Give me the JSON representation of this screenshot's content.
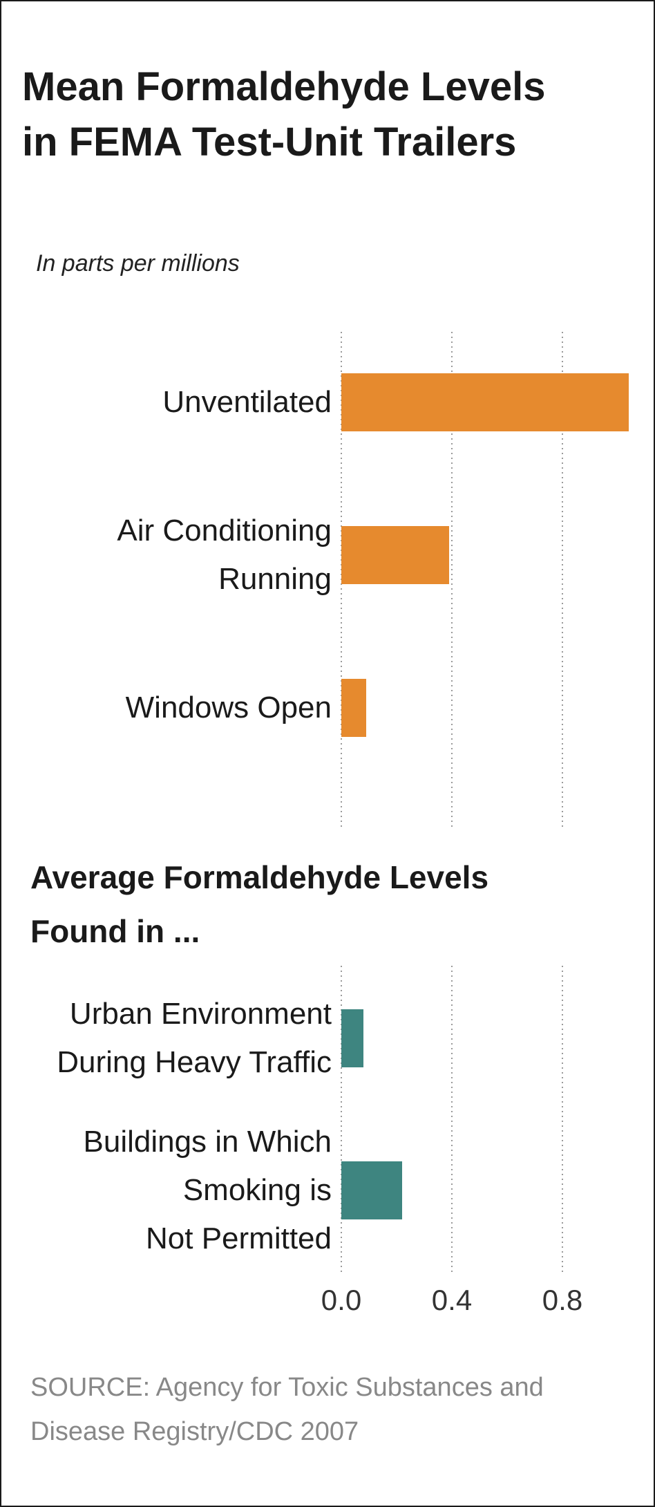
{
  "chart_data": [
    {
      "type": "bar",
      "orientation": "horizontal",
      "title": "Mean Formaldehyde Levels in FEMA Test-Unit Trailers",
      "title_lines": [
        "Mean Formaldehyde Levels",
        "in FEMA Test-Unit Trailers"
      ],
      "units": "In parts per millions",
      "categories": [
        "Unventilated",
        "Air Conditioning Running",
        "Windows Open"
      ],
      "category_lines": [
        [
          "Unventilated"
        ],
        [
          "Air Conditioning",
          "Running"
        ],
        [
          "Windows Open"
        ]
      ],
      "values": [
        1.04,
        0.39,
        0.09
      ],
      "color": "#e68a2e",
      "xlim": [
        0,
        1.04
      ],
      "grid": true
    },
    {
      "type": "bar",
      "orientation": "horizontal",
      "title": "Average Formaldehyde Levels Found in ...",
      "title_lines": [
        "Average Formaldehyde Levels",
        "Found in ..."
      ],
      "categories": [
        "Urban Environment During Heavy Traffic",
        "Buildings in Which Smoking is Not Permitted"
      ],
      "category_lines": [
        [
          "Urban Environment",
          "During Heavy Traffic"
        ],
        [
          "Buildings in Which",
          "Smoking is",
          "Not Permitted"
        ]
      ],
      "values": [
        0.08,
        0.22
      ],
      "color": "#3e8580",
      "xlim": [
        0,
        1.04
      ],
      "xticks": [
        0.0,
        0.4,
        0.8
      ],
      "xtick_labels": [
        "0.0",
        "0.4",
        "0.8"
      ],
      "grid": true
    }
  ],
  "source": [
    "SOURCE: Agency for Toxic Substances and",
    "Disease Registry/CDC 2007"
  ]
}
